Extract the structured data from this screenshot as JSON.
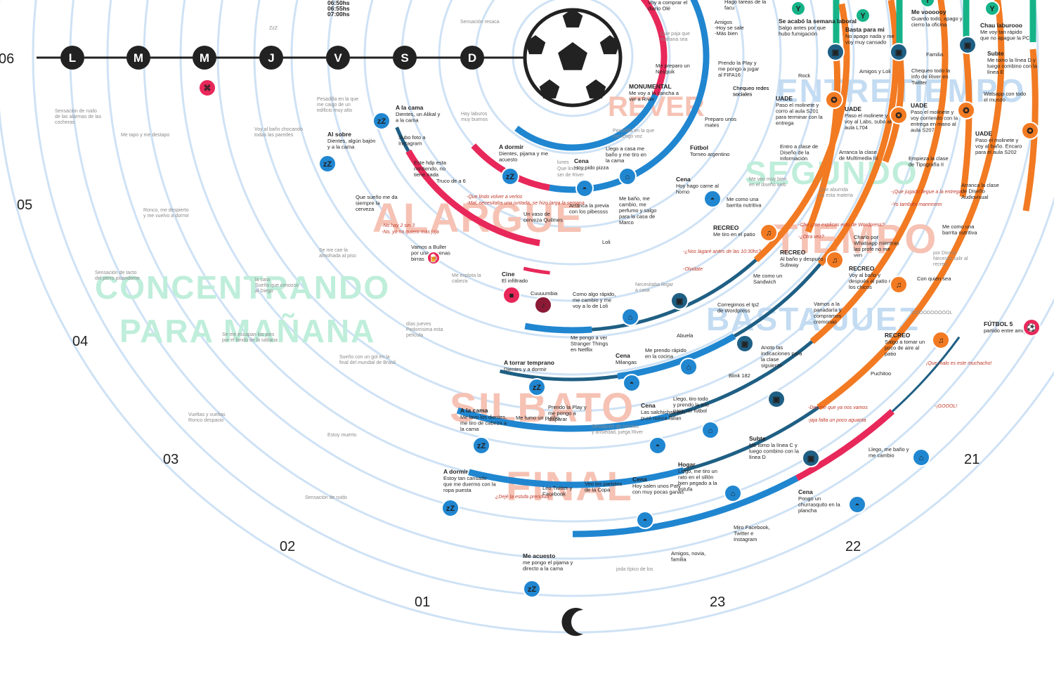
{
  "hours": [
    "06",
    "05",
    "04",
    "03",
    "02",
    "01",
    "23",
    "22",
    "21"
  ],
  "days": [
    "L",
    "M",
    "M",
    "J",
    "V",
    "S",
    "D"
  ],
  "sections": [
    "ALARGUE",
    "CONCENTRANDO",
    "PARA MAÑANA",
    "SILBATO",
    "FINAL",
    "ENTRETIEMPO",
    "SEGUNDO",
    "TIEMPO",
    "BASTA JUEZ",
    "REVER"
  ],
  "times": [
    "06:50hs",
    "06:55hs",
    "07:00hs"
  ],
  "grey_notes": [
    "Sensación resaca",
    "ZzZ",
    "Pesadilla en la que",
    "me caigo de un",
    "edificio muy alto",
    "Sensación de ruido",
    "de las alarmas de las",
    "cocheras",
    "Me tapo y me destapo",
    "Voy al baño chocando",
    "todas las paredes",
    "Ronco, me despierto",
    "y me vuelvo a dormir",
    "Se me cae la",
    "almohada al piso",
    "Sensación de tacto",
    "del perro pisandome",
    "la cara",
    "Sueño que conozco",
    "al Diego",
    "Se me escapan los pies",
    "por el fondo de la sábana",
    "Sueño con un gol en la",
    "final del mundial de Brasil",
    "Vueltas y vueltas",
    "Ronco despacio",
    "Estoy muerto",
    "Sensación de ruido",
    "joda típico de los",
    "días jueves",
    "Pedorrisima esta",
    "película",
    "Me explota la",
    "cabeza",
    "Necesitaba llegar",
    "a casa",
    "Sensación de nervios",
    "y ansiedad, juega River",
    "Que paja que",
    "mañana sea",
    "lunes",
    "Que lindo es",
    "ser de River",
    "Pesadilla en la que",
    "me tengo voz",
    "Hay laburos",
    "muy buenos",
    "Me veo muy bien",
    "en el diseño web",
    "Que aburrida",
    "es esta materia",
    "por Diosss",
    "Necesito salir al",
    "recreo",
    "GOOOOOOOOOL"
  ],
  "events": [
    {
      "title": "A la cama",
      "text": "Dientes, un Alikal y a la cama"
    },
    {
      "title": "Al sobre",
      "text": "Dientes, algún bajón y a la cama"
    },
    {
      "title": "A dormir",
      "text": "Dientes, pijama y me acuesto"
    },
    {
      "title": "Cena",
      "text": "Hoy pido pizza"
    },
    {
      "title": "MONUMENTAL",
      "text": "Me voy a la cancha a ver a River"
    },
    {
      "title": "Fútbol",
      "text": "Torneo argentino"
    },
    {
      "title": "Cena",
      "text": "Hoy hago carne al horno"
    },
    {
      "title": "RECREO",
      "text": "Me tiro en el patio"
    },
    {
      "title": "UADE",
      "text": "Paso el molinete y corro al aula S201 para terminar con la entrega"
    },
    {
      "title": "UADE",
      "text": "Paso el molinete y voy al Labs, subo al aula L704"
    },
    {
      "title": "UADE",
      "text": "Paso el molinete y voy corriendo con la entrega en mano al aula S207"
    },
    {
      "title": "UADE",
      "text": "Paso el molinete y voy al baño. Encaro para el aula S202"
    },
    {
      "title": "Se acabó la semana laboral",
      "text": "Salgo antes por que hubo fumigación"
    },
    {
      "title": "Basta para mi",
      "text": "No apago nada y me voy muy cansado"
    },
    {
      "title": "Me voooooy",
      "text": "Guardo todo, apago y cierro la oficina"
    },
    {
      "title": "Chau laburooo",
      "text": "Me voy tan rápido que no apague la PC"
    },
    {
      "title": "Subte",
      "text": "Me tomo la línea D y luego combino con la línea E"
    },
    {
      "title": "RECREO",
      "text": "Al baño y después al Subway"
    },
    {
      "title": "RECREO",
      "text": "Voy al baño y después al patio con los chicos"
    },
    {
      "title": "RECREO",
      "text": "Salgo a tomar un poco de aire al patio"
    },
    {
      "title": "FÚTBOL 5",
      "text": "partido entre amigos"
    },
    {
      "title": "Cine",
      "text": "El infiltrado"
    },
    {
      "title": "A torrar temprano",
      "text": "Dientes y a dormir"
    },
    {
      "title": "Cena",
      "text": "Milangas"
    },
    {
      "title": "A la cama",
      "text": "Me lavo los dientes, me tiro de cabeza a la cama"
    },
    {
      "title": "Cena",
      "text": "Las salchichas con puré nunca fallan"
    },
    {
      "title": "A dormir",
      "text": "Estoy tan cansado que me duermo con la ropa puesta"
    },
    {
      "title": "Cena",
      "text": "Hoy salen unos Paty con muy pocas ganas"
    },
    {
      "title": "Hogar",
      "text": "Llego, me tiro un rato en el sillón bien pegado a la estufa"
    },
    {
      "title": "Subte",
      "text": "Me tomo la línea C y luego combino con la línea D"
    },
    {
      "title": "Cena",
      "text": "Pongo un churrasquito en la plancha"
    },
    {
      "title": "Me acuesto",
      "text": "me pongo el pijama y directo a la cama"
    }
  ],
  "notes": [
    "Voy a comprar el diario Olé",
    "Me preparo un Nesquik",
    "Amigos",
    "-Hoy se sale",
    "-Más bien",
    "Prendo la Play y me pongo a jugar al FIFA16",
    "Chequeo redes sociales",
    "Preparo unos mates",
    "Llego a casa me baño y me tiro en la cama",
    "Me baño, me cambio, me perfumo y salgo para la casa de Marco",
    "Arranca la previa con los pibessss",
    "Un vaso de cerveza Quilmes",
    "Truco de a 6",
    "Loli",
    "Subo foto a Instagram",
    "Este hdp esta mintiendo, no tiene nada",
    "Que sueño me da siempre la cerveza",
    "Vamos a Buller por unas buenas birras",
    "Cuuuumbia",
    "Como algo rápido, me cambio y me voy a lo de Loli",
    "Me pongo a ver Stranger Things en Netflix",
    "Me prendo rápido en la cocina",
    "Abuela",
    "Corregimos el tp2 de Wordpress",
    "Anoto las indicaciones para la clase siguiente",
    "Vamos a la panadaría y compramos cremonas",
    "Me como un Sandwich",
    "Con quién sea",
    "Puchitoo",
    "Blink 182",
    "Llego, tiro todo y prendo la tele para ver fútbol",
    "Prendo la Play y me pongo a disparar",
    "Me fumo un pucho",
    "Leo Twitter y Facebook",
    "Veo los partidos de la Copa",
    "Miro Facebook, Twitter e Instagram",
    "Amigos, novia, familia",
    "Llego, me baño y me cambio",
    "Entro a clase de Diseño de la Información",
    "Arranca la clase de Multimedia III",
    "Empieza la clase de Tipografía II",
    "Arranca la clase de Diseño Audiovisual",
    "Me como una barrita nutritiva",
    "Me como una barrita nutritiva",
    "Charlo por Whatsapp mientras las profe no me ven",
    "Rock",
    "Amigos y Loli",
    "Chequeo todo la info de River en Twitter",
    "Familia",
    "Watsapp con todo el mundo",
    "Hago tareas de la facu",
    "Chequeo redes sociales"
  ],
  "quotes": [
    "-Que lindo volver a verlos",
    "-Mal, necesitaba una juntada, se hizo larga la semana",
    "-No hay 2 sin 3",
    "-No, yo no quiero más joja",
    "-¿Nos lagaré antes de las 10:30hs?",
    "-Olvidate",
    "-Che ¿me explicas esto de Wordpress?",
    "-¿Otra vez?",
    "-¡Que jugado llegue a la entrega",
    "-Yo también mannnnnn",
    "-Decime que ya nos vamos",
    "-jaja falta un poco aguanta",
    "¿Dejé la estufa prendida?",
    "¡Que malo es este muchacho!",
    "-¡GOOOL!"
  ],
  "colors": {
    "ring": "#cfe2f5",
    "blue": "#2086d0",
    "red": "#e8285a",
    "orange": "#f27a22",
    "green": "#16b388",
    "navy": "#1f5f84",
    "dark": "#222222",
    "ghost_red": "#f6c2b4",
    "ghost_green": "#bfeedb",
    "ghost_blue": "#c4dcf2"
  },
  "icons": [
    "soccer-ball-icon",
    "moon-icon",
    "sleep-icon",
    "house-icon",
    "train-icon",
    "dinner-icon",
    "bell-icon",
    "graduate-icon",
    "chat-icon",
    "whatsapp-icon",
    "wifi-icon",
    "signal-icon",
    "gamepad-icon",
    "music-icon",
    "camera-icon",
    "beer-icon",
    "tv-icon",
    "clock-icon",
    "cigarette-icon",
    "person-icon",
    "mate-icon",
    "newspaper-icon",
    "ghost-icon",
    "football-icon"
  ]
}
